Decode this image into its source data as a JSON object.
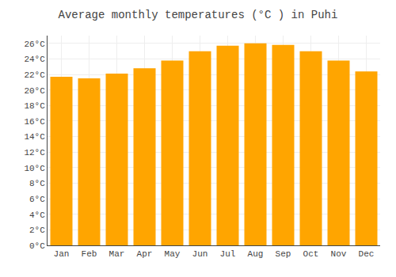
{
  "chart_data": {
    "type": "bar",
    "title": "Average monthly temperatures (°C ) in Puhi",
    "categories": [
      "Jan",
      "Feb",
      "Mar",
      "Apr",
      "May",
      "Jun",
      "Jul",
      "Aug",
      "Sep",
      "Oct",
      "Nov",
      "Dec"
    ],
    "values": [
      21.7,
      21.5,
      22.1,
      22.8,
      23.8,
      25.0,
      25.7,
      26.0,
      25.8,
      25.0,
      23.8,
      22.4
    ],
    "color": "#FFA500",
    "ylim": [
      0,
      27
    ],
    "yticks": [
      {
        "value": 0,
        "label": "0°C"
      },
      {
        "value": 2,
        "label": "2°C"
      },
      {
        "value": 4,
        "label": "4°C"
      },
      {
        "value": 6,
        "label": "6°C"
      },
      {
        "value": 8,
        "label": "8°C"
      },
      {
        "value": 10,
        "label": "10°C"
      },
      {
        "value": 12,
        "label": "12°C"
      },
      {
        "value": 14,
        "label": "14°C"
      },
      {
        "value": 16,
        "label": "16°C"
      },
      {
        "value": 18,
        "label": "18°C"
      },
      {
        "value": 20,
        "label": "20°C"
      },
      {
        "value": 22,
        "label": "22°C"
      },
      {
        "value": 24,
        "label": "24°C"
      },
      {
        "value": 26,
        "label": "26°C"
      }
    ],
    "grid": true
  }
}
